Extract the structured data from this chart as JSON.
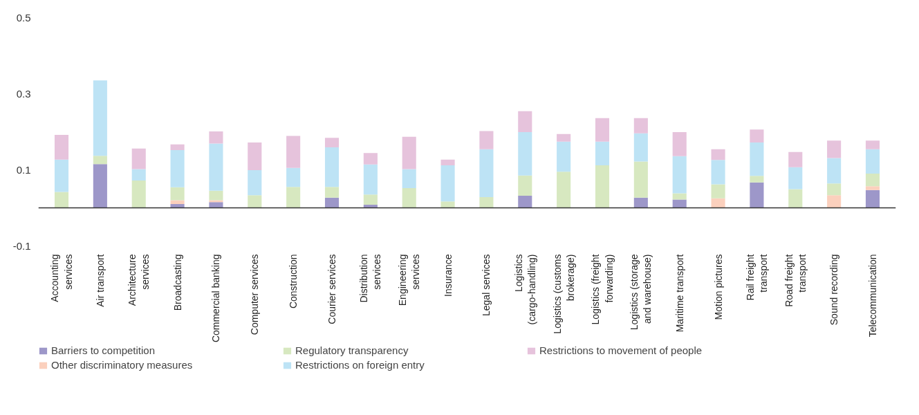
{
  "chart_data": {
    "type": "bar",
    "stacked": true,
    "categories": [
      "Accounting services",
      "Air transport",
      "Architecture services",
      "Broadcasting",
      "Commercial banking",
      "Computer services",
      "Construction",
      "Courier services",
      "Distribution services",
      "Engineering services",
      "Insurance",
      "Legal services",
      "Logistics (cargo-handling)",
      "Logistics (customs brokerage)",
      "Logistics (freight forwarding)",
      "Logistics (storage and warehouse)",
      "Maritime transport",
      "Motion pictures",
      "Rail freight transport",
      "Road freight transport",
      "Sound recording",
      "Telecommunication"
    ],
    "series": [
      {
        "name": "Barriers to competition",
        "color": "#9d97c9",
        "values": [
          0,
          0.115,
          0,
          0.01,
          0.015,
          0,
          0,
          0.027,
          0.008,
          0,
          0,
          0,
          0.032,
          0,
          0,
          0.027,
          0.022,
          0,
          0.067,
          0,
          0,
          0.047
        ]
      },
      {
        "name": "Other discriminatory measures",
        "color": "#fbd0bd",
        "values": [
          0,
          0,
          0,
          0.01,
          0.005,
          0,
          0,
          0,
          0,
          0,
          0,
          0,
          0,
          0,
          0,
          0,
          0,
          0.025,
          0,
          0,
          0.033,
          0.01
        ]
      },
      {
        "name": "Regulatory transparency",
        "color": "#d7e8c0",
        "values": [
          0.042,
          0.022,
          0.072,
          0.034,
          0.025,
          0.033,
          0.055,
          0.028,
          0.027,
          0.052,
          0.017,
          0.028,
          0.053,
          0.095,
          0.112,
          0.095,
          0.016,
          0.037,
          0.017,
          0.049,
          0.031,
          0.033
        ]
      },
      {
        "name": "Restrictions on foreign entry",
        "color": "#bde3f5",
        "values": [
          0.085,
          0.198,
          0.03,
          0.098,
          0.124,
          0.066,
          0.05,
          0.104,
          0.079,
          0.05,
          0.095,
          0.126,
          0.114,
          0.079,
          0.062,
          0.074,
          0.098,
          0.064,
          0.088,
          0.058,
          0.067,
          0.064
        ]
      },
      {
        "name": "Restrictions to movement of people",
        "color": "#e6c3dc",
        "values": [
          0.065,
          0,
          0.054,
          0.015,
          0.032,
          0.073,
          0.084,
          0.025,
          0.03,
          0.085,
          0.015,
          0.048,
          0.055,
          0.02,
          0.062,
          0.04,
          0.063,
          0.028,
          0.034,
          0.04,
          0.046,
          0.023
        ]
      }
    ],
    "ylim": [
      -0.1,
      0.5
    ],
    "yticks": [
      -0.1,
      0.1,
      0.3,
      0.5
    ],
    "grid": false,
    "legend": "bottom"
  }
}
